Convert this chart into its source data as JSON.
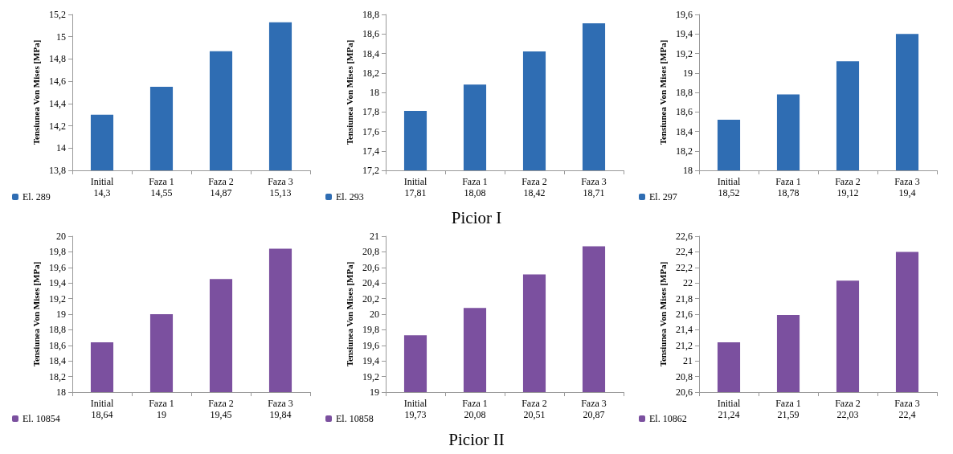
{
  "chart_data": [
    {
      "type": "bar",
      "ylabel": "Tensiunea Von Mises [MPa]",
      "categories": [
        "Initial",
        "Faza 1",
        "Faza 2",
        "Faza 3"
      ],
      "series": [
        {
          "name": "El. 289",
          "color": "#2f6db3",
          "values": [
            14.3,
            14.55,
            14.87,
            15.13
          ],
          "value_labels": [
            "14,3",
            "14,55",
            "14,87",
            "15,13"
          ]
        }
      ],
      "ylim": [
        13.8,
        15.2
      ],
      "yticks": [
        {
          "value": 13.8,
          "label": "13,8"
        },
        14,
        {
          "value": 14.2,
          "label": "14,2"
        },
        {
          "value": 14.4,
          "label": "14,4"
        },
        {
          "value": 14.6,
          "label": "14,6"
        },
        {
          "value": 14.8,
          "label": "14,8"
        },
        15,
        {
          "value": 15.2,
          "label": "15,2"
        }
      ],
      "legend": "bottom left",
      "grid": false
    },
    {
      "type": "bar",
      "ylabel": "Tensiunea Von Mises [MPa]",
      "categories": [
        "Initial",
        "Faza 1",
        "Faza 2",
        "Faza 3"
      ],
      "series": [
        {
          "name": "El. 293",
          "color": "#2f6db3",
          "values": [
            17.81,
            18.08,
            18.42,
            18.71
          ],
          "value_labels": [
            "17,81",
            "18,08",
            "18,42",
            "18,71"
          ]
        }
      ],
      "ylim": [
        17.2,
        18.8
      ],
      "yticks": [
        {
          "value": 17.2,
          "label": "17,2"
        },
        {
          "value": 17.4,
          "label": "17,4"
        },
        {
          "value": 17.6,
          "label": "17,6"
        },
        {
          "value": 17.8,
          "label": "17,8"
        },
        18,
        {
          "value": 18.2,
          "label": "18,2"
        },
        {
          "value": 18.4,
          "label": "18,4"
        },
        {
          "value": 18.6,
          "label": "18,6"
        },
        {
          "value": 18.8,
          "label": "18,8"
        }
      ],
      "legend": "bottom left",
      "grid": false,
      "annotations": [
        "Picior I"
      ]
    },
    {
      "type": "bar",
      "ylabel": "Tensiunea Von Mises [MPa]",
      "categories": [
        "Initial",
        "Faza 1",
        "Faza 2",
        "Faza 3"
      ],
      "series": [
        {
          "name": "El. 297",
          "color": "#2f6db3",
          "values": [
            18.52,
            18.78,
            19.12,
            19.4
          ],
          "value_labels": [
            "18,52",
            "18,78",
            "19,12",
            "19,4"
          ]
        }
      ],
      "ylim": [
        18,
        19.6
      ],
      "yticks": [
        18,
        {
          "value": 18.2,
          "label": "18,2"
        },
        {
          "value": 18.4,
          "label": "18,4"
        },
        {
          "value": 18.6,
          "label": "18,6"
        },
        {
          "value": 18.8,
          "label": "18,8"
        },
        19,
        {
          "value": 19.2,
          "label": "19,2"
        },
        {
          "value": 19.4,
          "label": "19,4"
        },
        {
          "value": 19.6,
          "label": "19,6"
        }
      ],
      "legend": "bottom left",
      "grid": false
    },
    {
      "type": "bar",
      "ylabel": "Tensiunea Von Mises [MPa]",
      "categories": [
        "Initial",
        "Faza 1",
        "Faza 2",
        "Faza 3"
      ],
      "series": [
        {
          "name": "El. 10854",
          "color": "#7b509f",
          "values": [
            18.64,
            19,
            19.45,
            19.84
          ],
          "value_labels": [
            "18,64",
            "19",
            "19,45",
            "19,84"
          ]
        }
      ],
      "ylim": [
        18,
        20
      ],
      "yticks": [
        18,
        {
          "value": 18.2,
          "label": "18,2"
        },
        {
          "value": 18.4,
          "label": "18,4"
        },
        {
          "value": 18.6,
          "label": "18,6"
        },
        {
          "value": 18.8,
          "label": "18,8"
        },
        19,
        {
          "value": 19.2,
          "label": "19,2"
        },
        {
          "value": 19.4,
          "label": "19,4"
        },
        {
          "value": 19.6,
          "label": "19,6"
        },
        {
          "value": 19.8,
          "label": "19,8"
        },
        20
      ],
      "legend": "bottom left",
      "grid": false
    },
    {
      "type": "bar",
      "ylabel": "Tensiunea Von Mises [MPa]",
      "categories": [
        "Initial",
        "Faza 1",
        "Faza 2",
        "Faza 3"
      ],
      "series": [
        {
          "name": "El. 10858",
          "color": "#7b509f",
          "values": [
            19.73,
            20.08,
            20.51,
            20.87
          ],
          "value_labels": [
            "19,73",
            "20,08",
            "20,51",
            "20,87"
          ]
        }
      ],
      "ylim": [
        19,
        21
      ],
      "yticks": [
        19,
        {
          "value": 19.2,
          "label": "19,2"
        },
        {
          "value": 19.4,
          "label": "19,4"
        },
        {
          "value": 19.6,
          "label": "19,6"
        },
        {
          "value": 19.8,
          "label": "19,8"
        },
        20,
        {
          "value": 20.2,
          "label": "20,2"
        },
        {
          "value": 20.4,
          "label": "20,4"
        },
        {
          "value": 20.6,
          "label": "20,6"
        },
        {
          "value": 20.8,
          "label": "20,8"
        },
        21
      ],
      "legend": "bottom left",
      "grid": false,
      "annotations": [
        "Picior II"
      ]
    },
    {
      "type": "bar",
      "ylabel": "Tensiunea Von Mises [MPa]",
      "categories": [
        "Initial",
        "Faza 1",
        "Faza 2",
        "Faza 3"
      ],
      "series": [
        {
          "name": "El. 10862",
          "color": "#7b509f",
          "values": [
            21.24,
            21.59,
            22.03,
            22.4
          ],
          "value_labels": [
            "21,24",
            "21,59",
            "22,03",
            "22,4"
          ]
        }
      ],
      "ylim": [
        20.6,
        22.6
      ],
      "yticks": [
        {
          "value": 20.6,
          "label": "20,6"
        },
        {
          "value": 20.8,
          "label": "20,8"
        },
        21,
        {
          "value": 21.2,
          "label": "21,2"
        },
        {
          "value": 21.4,
          "label": "21,4"
        },
        {
          "value": 21.6,
          "label": "21,6"
        },
        {
          "value": 21.8,
          "label": "21,8"
        },
        22,
        {
          "value": 22.2,
          "label": "22,2"
        },
        {
          "value": 22.4,
          "label": "22,4"
        },
        {
          "value": 22.6,
          "label": "22,6"
        }
      ],
      "legend": "bottom left",
      "grid": false
    }
  ]
}
